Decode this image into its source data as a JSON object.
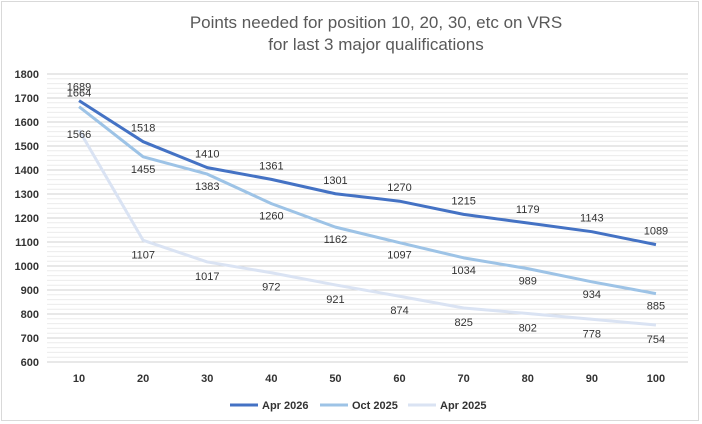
{
  "chart_data": {
    "type": "line",
    "title": [
      "Points needed for position 10, 20, 30, etc on VRS",
      "for last 3 major qualifications"
    ],
    "categories": [
      "10",
      "20",
      "30",
      "40",
      "50",
      "60",
      "70",
      "80",
      "90",
      "100"
    ],
    "ylim": [
      600,
      1800
    ],
    "yticks": [
      "600",
      "700",
      "800",
      "900",
      "1000",
      "1100",
      "1200",
      "1300",
      "1400",
      "1500",
      "1600",
      "1700",
      "1800"
    ],
    "grid": true,
    "legend_position": "bottom",
    "series": [
      {
        "name": "Apr 2026",
        "color": "#4472c4",
        "label_position": "above",
        "values": [
          1689,
          1518,
          1410,
          1361,
          1301,
          1270,
          1215,
          1179,
          1143,
          1089
        ]
      },
      {
        "name": "Oct 2025",
        "color": "#9dc3e6",
        "label_position": "mixed",
        "values": [
          1664,
          1455,
          1383,
          1260,
          1162,
          1097,
          1034,
          989,
          934,
          885
        ]
      },
      {
        "name": "Apr 2025",
        "color": "#dae3f3",
        "label_position": "below",
        "values": [
          1566,
          1107,
          1017,
          972,
          921,
          874,
          825,
          802,
          778,
          754
        ]
      }
    ]
  }
}
